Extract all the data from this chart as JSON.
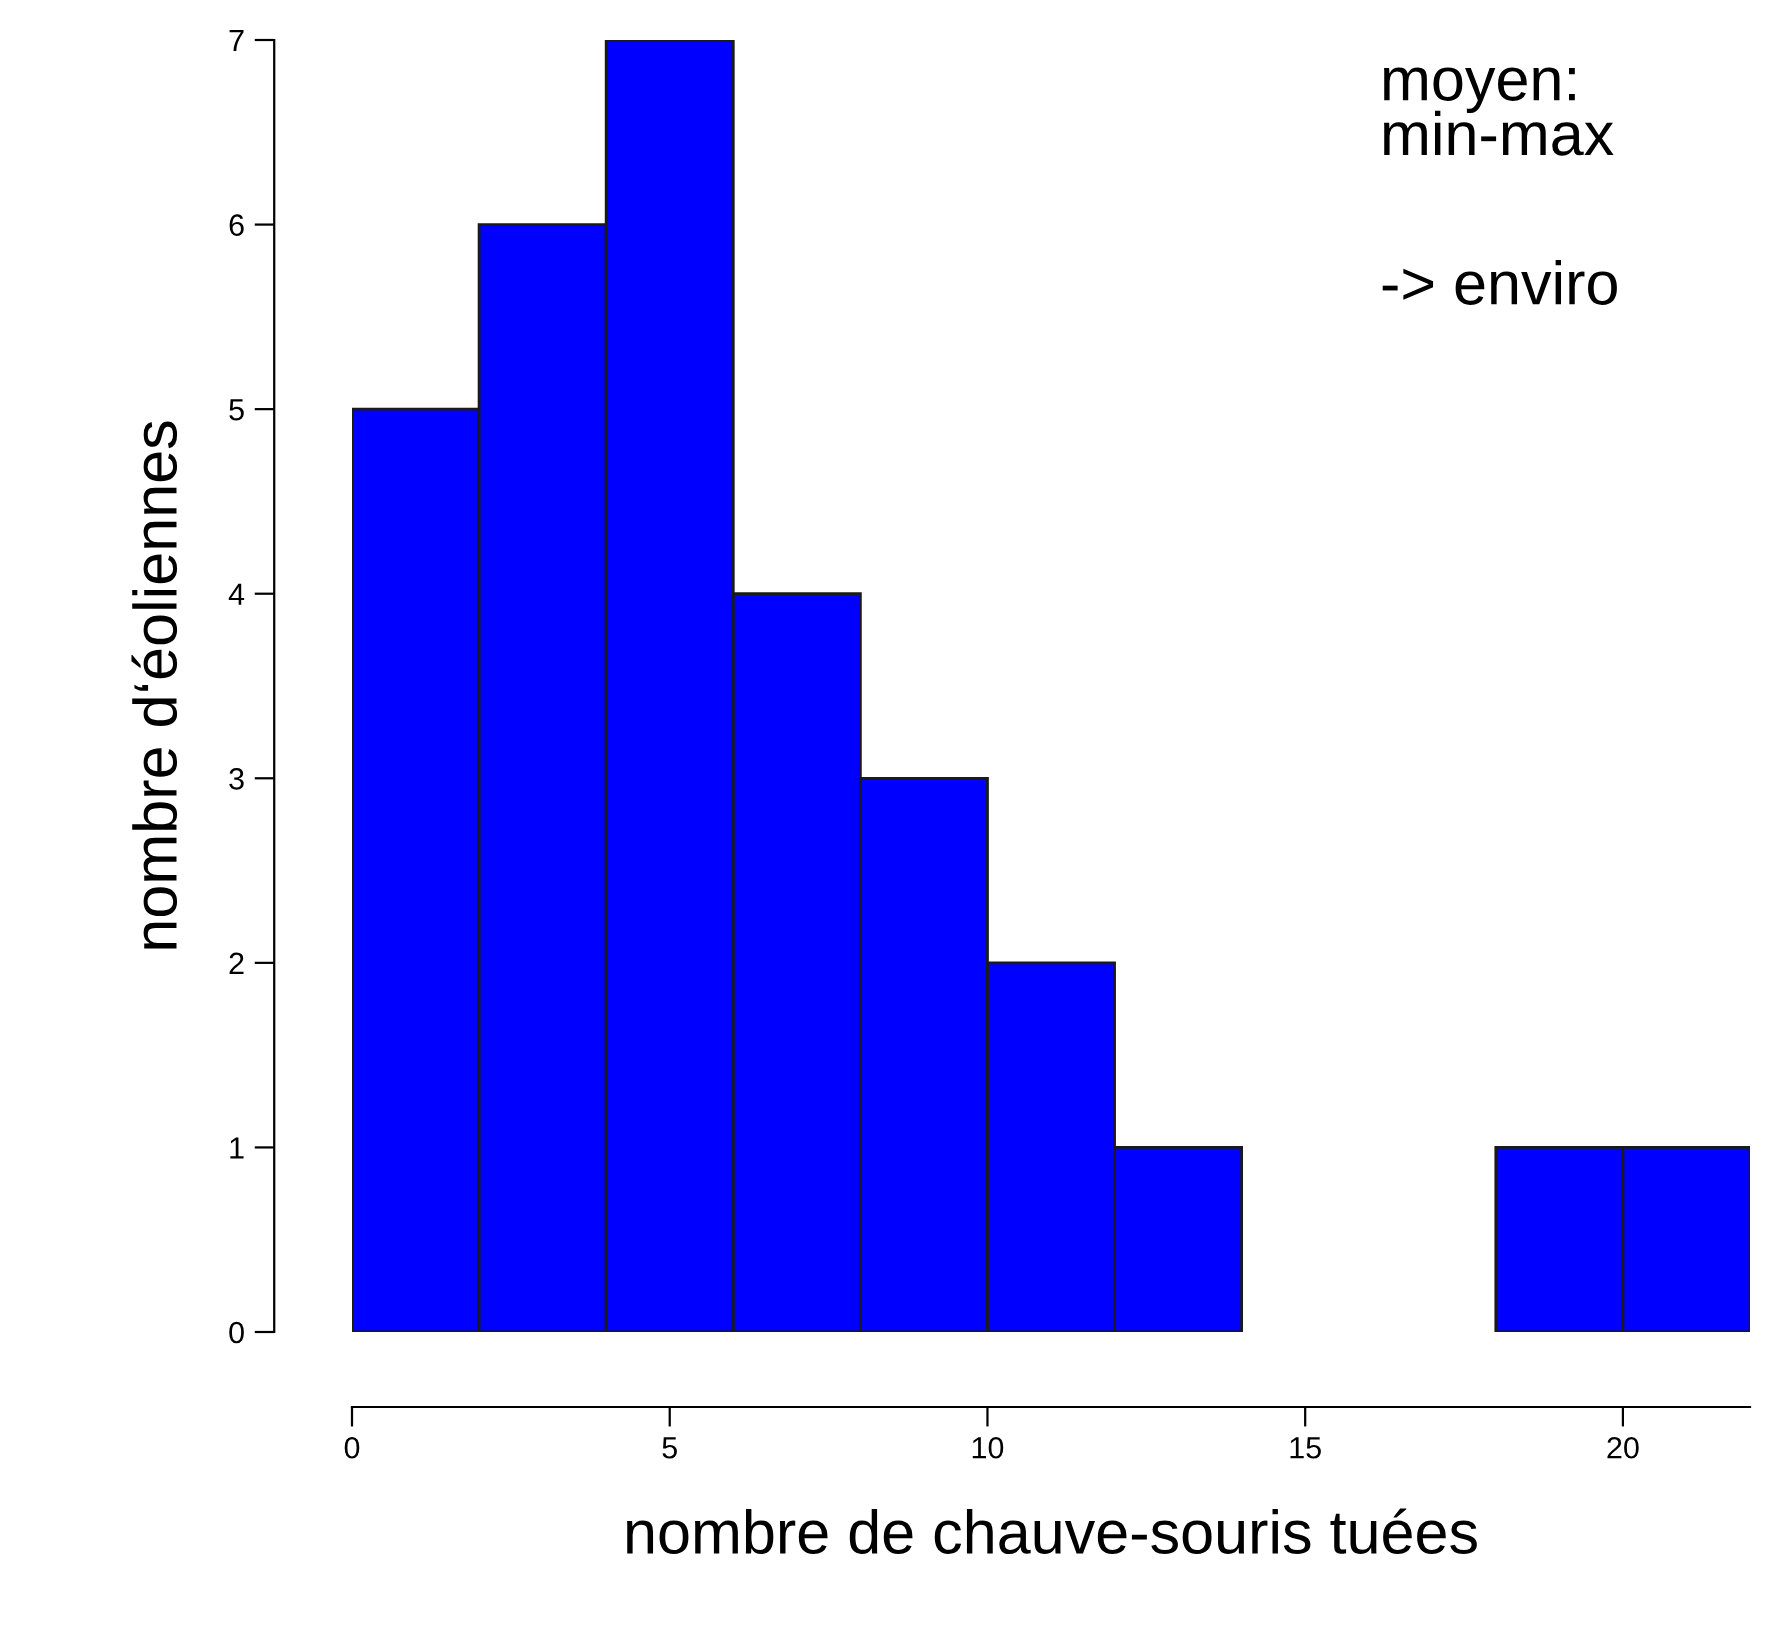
{
  "chart_data": {
    "type": "histogram",
    "xlabel": "nombre de chauve-souris tuées",
    "ylabel": "nombre d‘éoliennes",
    "bins": [
      0,
      2,
      4,
      6,
      8,
      10,
      12,
      14,
      16,
      18,
      20,
      22
    ],
    "values": [
      5,
      6,
      7,
      4,
      3,
      2,
      1,
      0,
      0,
      1,
      1
    ],
    "color": "#0000ff",
    "xlim": [
      0,
      22
    ],
    "xticks": [
      0,
      5,
      10,
      15,
      20
    ],
    "ylim": [
      0,
      7
    ],
    "yticks": [
      0,
      1,
      2,
      3,
      4,
      5,
      6,
      7
    ],
    "grid": false,
    "annotations": [
      "moyen:\nmin-max",
      "-> enviro"
    ]
  }
}
